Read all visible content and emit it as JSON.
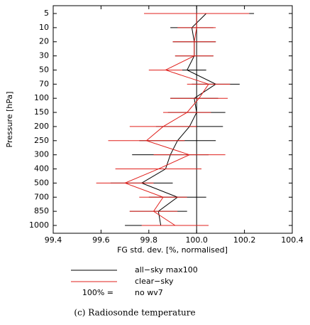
{
  "chart_data": {
    "type": "errorbar-profile",
    "xlabel": "FG std. dev. [%, normalised]",
    "ylabel": "Pressure [hPa]",
    "categories": [
      "5",
      "10",
      "20",
      "30",
      "50",
      "70",
      "100",
      "150",
      "200",
      "250",
      "300",
      "400",
      "500",
      "700",
      "850",
      "1000"
    ],
    "xlim": [
      99.4,
      100.4
    ],
    "xticks": [
      {
        "value": 99.4,
        "label": "99.4"
      },
      {
        "value": 99.6,
        "label": "99.6"
      },
      {
        "value": 99.8,
        "label": "99.8"
      },
      {
        "value": 100.0,
        "label": "100.0"
      },
      {
        "value": 100.2,
        "label": "100.2"
      },
      {
        "value": 100.4,
        "label": "100.4"
      }
    ],
    "reference_line": 100,
    "series": [
      {
        "name": "all−sky max100",
        "color": "#000000",
        "values": [
          100.04,
          99.98,
          99.99,
          99.99,
          99.96,
          100.08,
          99.99,
          100.0,
          99.97,
          99.92,
          99.89,
          99.87,
          99.77,
          99.92,
          99.84,
          99.85
        ],
        "errors": [
          0.2,
          0.09,
          0.09,
          0.08,
          0.08,
          0.1,
          0.1,
          0.12,
          0.14,
          0.16,
          0.16,
          0.15,
          0.13,
          0.12,
          0.12,
          0.15
        ]
      },
      {
        "name": "clear−sky",
        "color": "#e0201c",
        "values": [
          100.0,
          100.0,
          99.99,
          99.99,
          99.87,
          100.05,
          100.01,
          99.96,
          99.86,
          99.79,
          99.97,
          99.84,
          99.7,
          99.86,
          99.82,
          99.91
        ],
        "errors": [
          0.22,
          0.08,
          0.09,
          0.08,
          0.07,
          0.09,
          0.12,
          0.1,
          0.14,
          0.16,
          0.15,
          0.18,
          0.12,
          0.1,
          0.1,
          0.14
        ]
      }
    ],
    "legend_note": {
      "label": "100% =",
      "text": "no wv7"
    },
    "caption": "(c) Radiosonde temperature"
  }
}
